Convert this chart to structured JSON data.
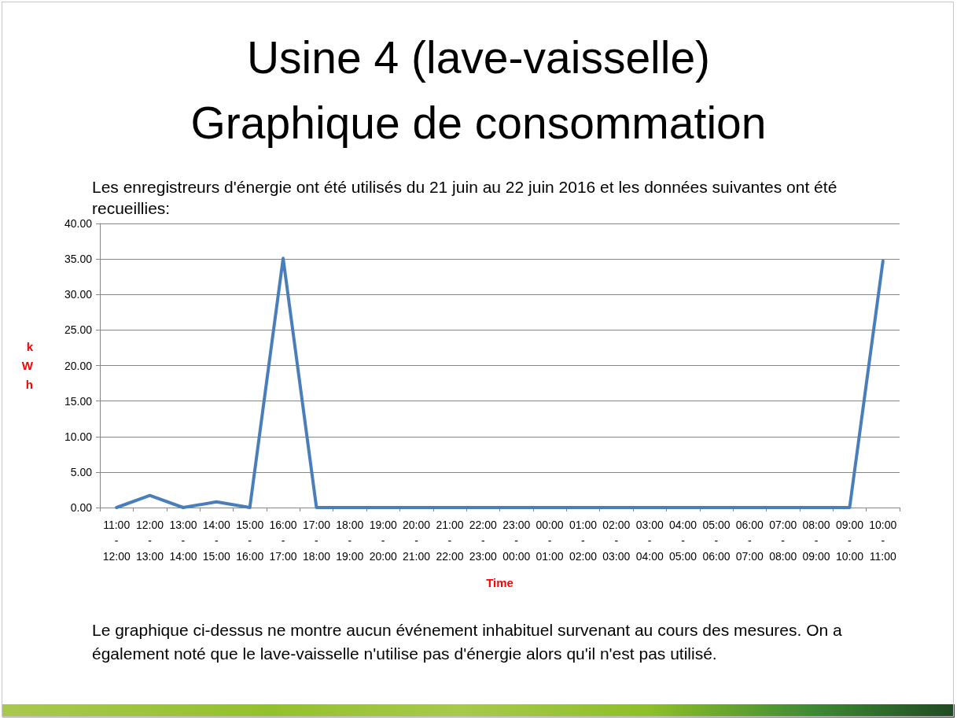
{
  "chart_data": {
    "type": "line",
    "title": "Usine 4 (lave-vaisselle) Graphique de consommation",
    "subtitle": "Les enregistreurs d'énergie ont été utilisés du 21 juin au 22 juin 2016 et les données suivantes ont été recueillies:",
    "xlabel": "Time",
    "ylabel": "kWh",
    "categories": [
      "11:00 - 12:00",
      "12:00 - 13:00",
      "13:00 - 14:00",
      "14:00 - 15:00",
      "15:00 - 16:00",
      "16:00 - 17:00",
      "17:00 - 18:00",
      "18:00 - 19:00",
      "19:00 - 20:00",
      "20:00 - 21:00",
      "21:00 - 22:00",
      "22:00 - 23:00",
      "23:00 - 00:00",
      "00:00 - 01:00",
      "01:00 - 02:00",
      "02:00 - 03:00",
      "03:00 - 04:00",
      "04:00 - 05:00",
      "05:00 - 06:00",
      "06:00 - 07:00",
      "07:00 - 08:00",
      "08:00 - 09:00",
      "09:00 - 10:00",
      "10:00 - 11:00"
    ],
    "values": [
      0,
      1.7,
      0,
      0.8,
      0,
      35.1,
      0,
      0,
      0,
      0,
      0,
      0,
      0,
      0,
      0,
      0,
      0,
      0,
      0,
      0,
      0,
      0,
      0,
      34.7
    ],
    "color": "#4a7ebb",
    "marker": "none",
    "grid": "y",
    "ylim": [
      0,
      40
    ],
    "yticks": [
      {
        "value": 0,
        "label": "0.00"
      },
      {
        "value": 5,
        "label": "5.00"
      },
      {
        "value": 10,
        "label": "10.00"
      },
      {
        "value": 15,
        "label": "15.00"
      },
      {
        "value": 20,
        "label": "20.00"
      },
      {
        "value": 25,
        "label": "25.00"
      },
      {
        "value": 30,
        "label": "30.00"
      },
      {
        "value": 35,
        "label": "35.00"
      },
      {
        "value": 40,
        "label": "40.00"
      }
    ],
    "annotations": [
      "Le graphique ci-dessus ne montre aucun événement inhabituel survenant au cours des mesures. On a également noté que le lave-vaisselle n'utilise pas d'énergie alors qu'il n'est pas utilisé."
    ]
  }
}
